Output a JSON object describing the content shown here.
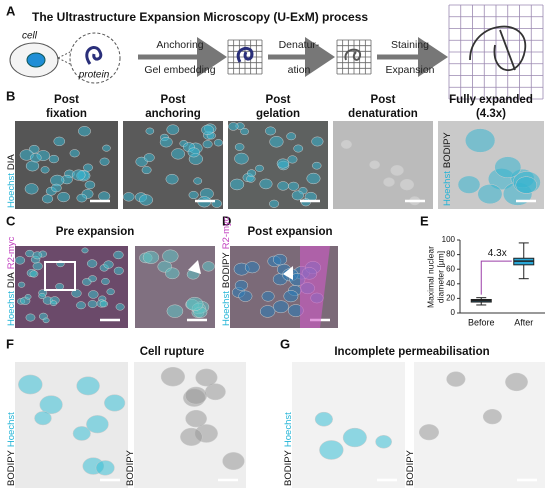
{
  "panel_labels": [
    "A",
    "B",
    "C",
    "i",
    "D",
    "E",
    "F",
    "G"
  ],
  "panel_a": {
    "title": "The Ultrastructure Expansion Microscopy (U-ExM) process",
    "cell": "cell",
    "protein": "protein",
    "steps": [
      [
        "Anchoring",
        "Gel embedding"
      ],
      [
        "Denatur-",
        "ation"
      ],
      [
        "Staining",
        "Expansion"
      ]
    ]
  },
  "panel_b": {
    "columns": [
      [
        "Post",
        "fixation"
      ],
      [
        "Post",
        "anchoring"
      ],
      [
        "Post",
        "gelation"
      ],
      [
        "Post",
        "denaturation"
      ],
      [
        "Fully expanded",
        "(4.3x)"
      ]
    ],
    "stain_left": [
      {
        "text": "Hoechst",
        "color": "#1fb3d6"
      },
      {
        "text": "DIA",
        "color": "#111111"
      }
    ],
    "stain_right": [
      {
        "text": "Hoechst",
        "color": "#1fb3d6"
      },
      {
        "text": "BODIPY",
        "color": "#111111"
      }
    ]
  },
  "panel_c": {
    "title": "Pre expansion",
    "stain": [
      {
        "text": "Hoechst",
        "color": "#1fb3d6"
      },
      {
        "text": "DIA",
        "color": "#111111"
      },
      {
        "text": "R2-myc",
        "color": "#c03cbf"
      }
    ]
  },
  "panel_d": {
    "title": "Post expansion",
    "stain": [
      {
        "text": "Hoechst",
        "color": "#1fb3d6"
      },
      {
        "text": "BODIPY",
        "color": "#111111"
      },
      {
        "text": "R2-myc",
        "color": "#c03cbf"
      }
    ]
  },
  "panel_f": {
    "title": "Cell rupture",
    "stain_left": [
      {
        "text": "BODIPY",
        "color": "#111111"
      },
      {
        "text": "Hoechst",
        "color": "#1fb3d6"
      }
    ],
    "stain_right": [
      {
        "text": "BODIPY",
        "color": "#111111"
      }
    ]
  },
  "panel_g": {
    "title": "Incomplete permeabilisation",
    "stain_left": [
      {
        "text": "BODIPY",
        "color": "#111111"
      },
      {
        "text": "Hoechst",
        "color": "#1fb3d6"
      }
    ],
    "stain_right": [
      {
        "text": "BODIPY",
        "color": "#111111"
      }
    ]
  },
  "chart_data": {
    "type": "box",
    "y_label": [
      "Maximal nuclear",
      "diameter [µm]"
    ],
    "categories": [
      "Before",
      "After"
    ],
    "color": "#2aa7d6",
    "min": [
      11,
      47
    ],
    "q1": [
      15,
      66
    ],
    "median": [
      17,
      71
    ],
    "q3": [
      18.5,
      75
    ],
    "max": [
      21,
      96
    ],
    "ylim": [
      0,
      100
    ],
    "yticks": [
      0,
      20,
      40,
      60,
      80,
      100
    ],
    "annotation": {
      "text": "4.3x",
      "color": "#9b3fa8"
    }
  }
}
